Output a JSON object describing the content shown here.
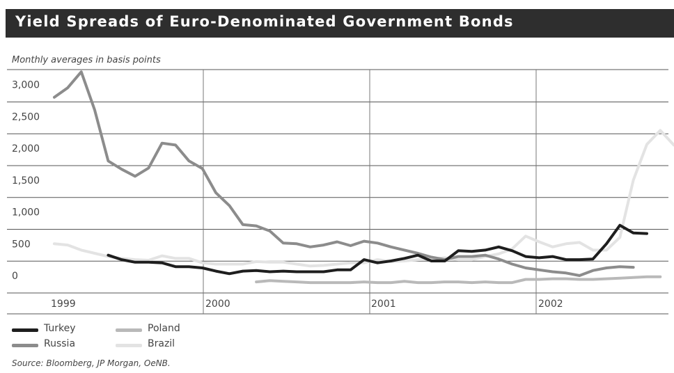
{
  "title": "Yield Spreads of Euro-Denominated Government Bonds",
  "subtitle": "Monthly averages in basis points",
  "source": "Source: Bloomberg, JP Morgan, OeNB.",
  "chart_data": {
    "type": "line",
    "ylim": [
      -300,
      3250
    ],
    "y_ticks": [
      0,
      500,
      1000,
      1500,
      2000,
      2500,
      3000
    ],
    "y_tick_labels": [
      "0",
      "500",
      "1,000",
      "1,500",
      "2,000",
      "2,500",
      "3,000"
    ],
    "x_ticks": [
      "1999",
      "2000",
      "2001",
      "2002"
    ],
    "x_unit": "month index (0 = Jan 1999)",
    "xlim": [
      0,
      45.5
    ],
    "grid": true,
    "legend_position": "bottom-left",
    "series": [
      {
        "name": "Turkey",
        "color": "#1e1e1e",
        "start_month": 4,
        "values": [
          320,
          250,
          210,
          210,
          200,
          140,
          140,
          120,
          70,
          30,
          70,
          80,
          60,
          70,
          60,
          60,
          60,
          90,
          90,
          250,
          200,
          230,
          270,
          320,
          230,
          230,
          390,
          380,
          400,
          450,
          390,
          300,
          280,
          300,
          250,
          250,
          260,
          500,
          790,
          670,
          660
        ]
      },
      {
        "name": "Russia",
        "color": "#8c8c8c",
        "start_month": 0,
        "values": [
          2800,
          2950,
          3200,
          2600,
          1800,
          1670,
          1560,
          1690,
          2080,
          2050,
          1800,
          1680,
          1300,
          1100,
          800,
          780,
          700,
          510,
          500,
          450,
          480,
          530,
          470,
          540,
          510,
          450,
          400,
          350,
          290,
          250,
          300,
          300,
          320,
          260,
          180,
          120,
          90,
          60,
          40,
          0,
          80,
          120,
          140,
          130
        ]
      },
      {
        "name": "Poland",
        "color": "#b9b9b9",
        "start_month": 15,
        "values": [
          -100,
          -80,
          -90,
          -100,
          -110,
          -110,
          -110,
          -110,
          -100,
          -110,
          -110,
          -90,
          -110,
          -110,
          -100,
          -100,
          -110,
          -100,
          -110,
          -110,
          -60,
          -60,
          -50,
          -50,
          -60,
          -60,
          -50,
          -40,
          -30,
          -20,
          -20
        ]
      },
      {
        "name": "Brazil",
        "color": "#e3e3e3",
        "start_month": 0,
        "values": [
          500,
          480,
          400,
          350,
          300,
          270,
          250,
          240,
          310,
          270,
          270,
          200,
          180,
          180,
          180,
          220,
          210,
          210,
          180,
          150,
          160,
          180,
          200,
          200,
          250,
          220,
          230,
          250,
          260,
          280,
          250,
          250,
          300,
          340,
          420,
          620,
          530,
          450,
          500,
          520,
          400,
          400,
          600,
          1500,
          2060,
          2280,
          2050
        ]
      }
    ]
  }
}
